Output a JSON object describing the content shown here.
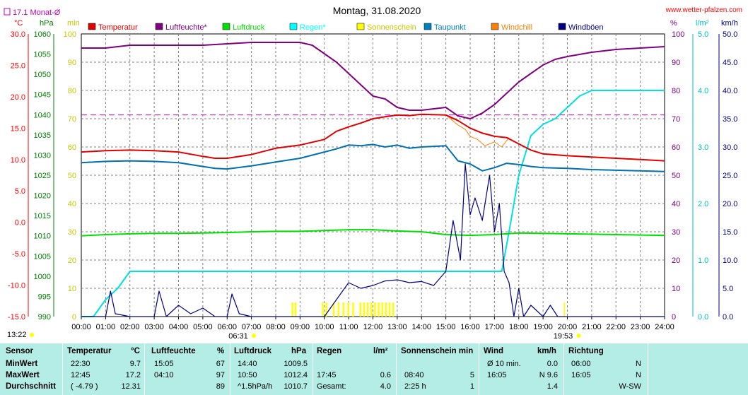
{
  "chart_data": {
    "type": "line",
    "title": "Montag, 31.08.2020",
    "site": "www.wetter-pfalzen.com",
    "x_ticks": [
      "00:00",
      "01:00",
      "02:00",
      "03:00",
      "04:00",
      "05:00",
      "06:00",
      "07:00",
      "08:00",
      "09:00",
      "10:00",
      "11:00",
      "12:00",
      "13:00",
      "14:00",
      "15:00",
      "16:00",
      "17:00",
      "18:00",
      "19:00",
      "20:00",
      "21:00",
      "22:00",
      "23:00",
      "24:00"
    ],
    "x_range_hours": [
      0,
      24
    ],
    "reference": {
      "label": "17.1 Monat-Ø",
      "value_celsius": 17.1,
      "color": "#c000c0"
    },
    "axes": {
      "temp": {
        "unit": "°C",
        "min": -15,
        "max": 30,
        "ticks": [
          "30.0",
          "25.0",
          "20.0",
          "15.0",
          "10.0",
          "5.0",
          "0.0",
          "-5.0",
          "-10.0",
          "-15.0"
        ],
        "color": "#ff0000"
      },
      "pressure": {
        "unit": "hPa",
        "min": 990,
        "max": 1060,
        "ticks": [
          "1060",
          "1055",
          "1050",
          "1045",
          "1040",
          "1035",
          "1030",
          "1025",
          "1020",
          "1015",
          "1010",
          "1005",
          "1000",
          "995",
          "990"
        ],
        "color": "#008000"
      },
      "sunshine": {
        "unit": "min",
        "min": 0,
        "max": 100,
        "ticks": [
          "100",
          "90",
          "80",
          "70",
          "60",
          "50",
          "40",
          "30",
          "20",
          "10",
          "0"
        ],
        "color": "#c8c800"
      },
      "humidity": {
        "unit": "%",
        "min": 0,
        "max": 100,
        "ticks": [
          "100",
          "90",
          "80",
          "70",
          "60",
          "50",
          "40",
          "30",
          "20",
          "10",
          "0"
        ],
        "color": "#800080"
      },
      "rain": {
        "unit": "l/m²",
        "min": 0,
        "max": 5,
        "ticks": [
          "5.0",
          "4.0",
          "3.0",
          "2.0",
          "1.0",
          "0.0"
        ],
        "color": "#00c0c0"
      },
      "wind": {
        "unit": "km/h",
        "min": 0,
        "max": 50,
        "ticks": [
          "50.0",
          "45.0",
          "40.0",
          "35.0",
          "30.0",
          "25.0",
          "20.0",
          "15.0",
          "10.0",
          "5.0",
          "0.0"
        ],
        "color": "#000080"
      }
    },
    "legend": [
      {
        "name": "Temperatur",
        "color": "#e00000"
      },
      {
        "name": "Luftfeuchte*",
        "color": "#800080"
      },
      {
        "name": "Luftdruck",
        "color": "#00e000"
      },
      {
        "name": "Regen*",
        "color": "#00ffff"
      },
      {
        "name": "Sonnenschein",
        "color": "#ffff00"
      },
      {
        "name": "Taupunkt",
        "color": "#0080c0"
      },
      {
        "name": "Windchill",
        "color": "#ff8000"
      },
      {
        "name": "Windböen",
        "color": "#000080"
      }
    ],
    "sunrise": "06:31",
    "sunset": "19:53",
    "left_time": "13:22",
    "series": {
      "temperature": {
        "x": [
          0,
          1,
          2,
          3,
          4,
          5,
          5.5,
          6,
          7,
          8,
          9,
          10,
          10.5,
          11,
          11.5,
          12,
          12.5,
          13,
          13.5,
          14,
          15,
          15.5,
          16,
          16.5,
          17,
          17.5,
          18,
          18.5,
          19,
          20,
          21,
          22,
          23,
          24
        ],
        "y": [
          11.2,
          11.4,
          11.5,
          11.4,
          11.2,
          10.5,
          10.2,
          10.2,
          10.8,
          11.8,
          12.3,
          13.2,
          14.5,
          15.2,
          15.8,
          16.5,
          16.8,
          17.1,
          17.0,
          17.2,
          17.1,
          16.2,
          15.0,
          14.2,
          13.7,
          13.5,
          12.5,
          11.5,
          10.9,
          10.6,
          10.4,
          10.2,
          10.0,
          9.8
        ]
      },
      "humidity": {
        "x": [
          0,
          1,
          2,
          2.5,
          3,
          4,
          5,
          6,
          7,
          8,
          9,
          9.5,
          10,
          10.5,
          11,
          11.5,
          12,
          12.5,
          13,
          13.5,
          14,
          15,
          15.5,
          16,
          16.5,
          17,
          17.5,
          18,
          18.5,
          19,
          19.5,
          20,
          21,
          22,
          23,
          24
        ],
        "y": [
          95,
          95,
          96,
          96,
          96,
          96,
          96,
          96.5,
          97,
          97,
          97,
          96,
          93,
          90,
          86,
          82,
          78,
          77,
          74,
          73,
          73,
          74,
          71,
          70,
          72,
          75,
          79,
          83,
          86,
          89,
          91,
          92,
          93.5,
          94.5,
          95,
          95.5
        ]
      },
      "pressure": {
        "x": [
          0,
          1,
          2,
          3,
          4,
          5,
          6,
          7,
          8,
          9,
          10,
          11,
          12,
          13,
          14,
          15,
          16,
          17,
          18,
          19,
          20,
          21,
          22,
          23,
          24
        ],
        "y": [
          1010.0,
          1010.3,
          1010.5,
          1010.6,
          1010.6,
          1010.7,
          1010.8,
          1011.0,
          1011.1,
          1011.1,
          1011.3,
          1011.5,
          1011.5,
          1011.2,
          1011.0,
          1010.3,
          1010.1,
          1010.3,
          1010.7,
          1010.6,
          1010.5,
          1010.4,
          1010.3,
          1010.2,
          1010.1
        ]
      },
      "rain": {
        "x": [
          0,
          0.5,
          1,
          1.5,
          2,
          2.5,
          3,
          4,
          5,
          6,
          7,
          8,
          9,
          10,
          11,
          12,
          13,
          14,
          15,
          16,
          16.5,
          17,
          17.3,
          17.6,
          18,
          18.5,
          19,
          19.5,
          20,
          20.5,
          21,
          22,
          23,
          24
        ],
        "y": [
          0,
          0,
          0.3,
          0.5,
          0.8,
          0.8,
          0.8,
          0.8,
          0.8,
          0.8,
          0.8,
          0.8,
          0.8,
          0.8,
          0.8,
          0.8,
          0.8,
          0.8,
          0.8,
          0.8,
          0.8,
          0.8,
          0.8,
          1.5,
          2.5,
          3.2,
          3.4,
          3.5,
          3.7,
          3.9,
          4.0,
          4.0,
          4.0,
          4.0
        ]
      },
      "dewpoint": {
        "x": [
          0,
          1,
          2,
          3,
          4,
          5,
          5.5,
          6,
          7,
          8,
          9,
          10,
          10.5,
          11,
          11.5,
          12,
          12.5,
          13,
          13.5,
          14,
          15,
          15.5,
          16,
          16.5,
          17,
          17.5,
          18,
          18.5,
          19,
          20,
          21,
          22,
          23,
          24
        ],
        "y": [
          9.5,
          9.7,
          9.8,
          9.7,
          9.5,
          8.9,
          8.6,
          8.5,
          9.0,
          9.6,
          10.2,
          11.2,
          11.7,
          12.3,
          12.2,
          12.4,
          12.0,
          12.3,
          11.8,
          12.0,
          12.2,
          9.8,
          9.3,
          8.2,
          8.7,
          9.4,
          9.2,
          8.9,
          8.7,
          8.6,
          8.4,
          8.3,
          8.2,
          8.1
        ]
      },
      "windchill": {
        "x": [
          15,
          15.5,
          15.8,
          16,
          16.3,
          16.6,
          17,
          17.3,
          17.6
        ],
        "y": [
          17.1,
          15.5,
          14.8,
          13.7,
          13.2,
          12.2,
          12.8,
          12.0,
          13.5
        ]
      },
      "gusts": {
        "x": [
          0,
          1,
          1.2,
          1.4,
          2,
          3,
          3.2,
          3.5,
          4,
          4.5,
          5,
          5.5,
          6,
          6.2,
          6.5,
          7,
          8,
          9,
          10,
          10.5,
          11,
          11.5,
          12,
          12.5,
          13,
          13.5,
          14,
          14.5,
          15,
          15.3,
          15.6,
          15.8,
          16,
          16.2,
          16.5,
          16.8,
          17,
          17.2,
          17.4,
          17.6,
          17.8,
          18,
          18.2,
          18.5,
          19,
          19.3,
          19.6,
          20,
          21,
          22,
          23,
          24
        ],
        "y": [
          0,
          0,
          4.5,
          0.5,
          0,
          0,
          4.5,
          0,
          2,
          0.5,
          1.5,
          0,
          0,
          4,
          0.5,
          0,
          0,
          0,
          0,
          3,
          6,
          5,
          5.5,
          6.3,
          6.5,
          6,
          6.2,
          5.5,
          8,
          17,
          10,
          27,
          18,
          21,
          17,
          25,
          15,
          20,
          8,
          6,
          0,
          5,
          0,
          2,
          0,
          2,
          0,
          0,
          0,
          0,
          0,
          0
        ]
      },
      "sunshine_bars": [
        [
          8.65,
          8.72
        ],
        [
          8.78,
          8.85
        ],
        [
          9.9,
          9.97
        ],
        [
          10.05,
          10.12
        ],
        [
          10.35,
          10.42
        ],
        [
          10.55,
          10.62
        ],
        [
          10.75,
          10.82
        ],
        [
          10.95,
          11.02
        ],
        [
          11.15,
          11.22
        ],
        [
          11.45,
          11.52
        ],
        [
          11.6,
          11.67
        ],
        [
          11.75,
          11.82
        ],
        [
          11.9,
          11.97
        ],
        [
          12.05,
          12.12
        ],
        [
          12.2,
          12.27
        ],
        [
          12.35,
          12.42
        ],
        [
          12.5,
          12.57
        ],
        [
          12.65,
          12.72
        ],
        [
          12.8,
          12.87
        ],
        [
          19.85,
          19.9
        ]
      ]
    },
    "gridlines": "dashed grey",
    "reference_line_dashed": true
  },
  "stats": {
    "headers": {
      "sensor": "Sensor",
      "temp": "Temperatur",
      "temp_unit": "°C",
      "hum": "Luftfeuchte",
      "hum_unit": "%",
      "press": "Luftdruck",
      "press_unit": "hPa",
      "rain": "Regen",
      "rain_unit": "l/m²",
      "sun": "Sonnenschein min",
      "wind": "Wind",
      "wind_unit": "km/h",
      "dir": "Richtung"
    },
    "rows": [
      {
        "label": "MinWert",
        "temp_time": "22:30",
        "temp_val": "9.7",
        "hum_time": "15:05",
        "hum_val": "67",
        "press_time": "14:40",
        "press_val": "1009.5",
        "rain_time": "",
        "rain_val": "",
        "sun_time": "",
        "sun_val": "",
        "wind_time": "Ø 10 min.",
        "wind_val": "0.0",
        "dir_time": "06:00",
        "dir_val": "N"
      },
      {
        "label": "MaxWert",
        "temp_time": "12:45",
        "temp_val": "17.2",
        "hum_time": "04:10",
        "hum_val": "97",
        "press_time": "10:50",
        "press_val": "1012.4",
        "rain_time": "17:45",
        "rain_val": "0.6",
        "sun_time": "08:40",
        "sun_val": "5",
        "wind_time": "16:05",
        "wind_val": "N 9.6",
        "dir_time": "16:05",
        "dir_val": "N"
      },
      {
        "label": "Durchschnitt",
        "temp_time": "( -4.79 )",
        "temp_val": "12.31",
        "hum_time": "",
        "hum_val": "89",
        "press_time": "^1.5hPa/h",
        "press_val": "1010.7",
        "rain_time": "Gesamt:",
        "rain_val": "4.0",
        "sun_time": "2:25 h",
        "sun_val": "1",
        "wind_time": "",
        "wind_val": "1.4",
        "dir_time": "",
        "dir_val": "W-SW"
      }
    ]
  }
}
